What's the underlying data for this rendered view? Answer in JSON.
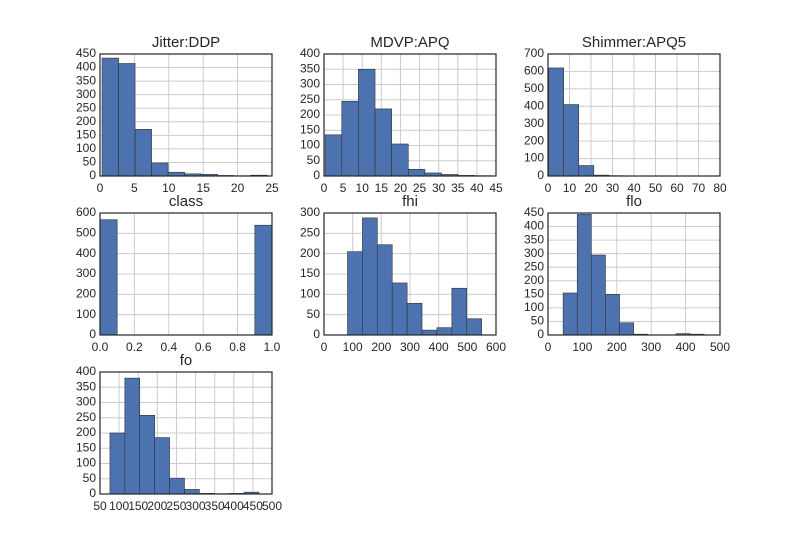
{
  "chart_data": [
    {
      "type": "histogram",
      "title": "Jitter:DDP",
      "color": "#4c72b0",
      "grid": true,
      "bins": [
        0.3,
        2.7,
        5.1,
        7.5,
        9.9,
        12.3,
        14.7,
        17.1,
        19.5,
        21.9,
        24.3
      ],
      "counts": [
        435,
        415,
        172,
        48,
        14,
        8,
        6,
        2,
        1,
        3
      ],
      "xlim": [
        0,
        25
      ],
      "xticks": [
        0,
        5,
        10,
        15,
        20,
        25
      ],
      "ylim": [
        0,
        450
      ],
      "yticks": [
        0,
        50,
        100,
        150,
        200,
        250,
        300,
        350,
        400,
        450
      ]
    },
    {
      "type": "histogram",
      "title": "MDVP:APQ",
      "color": "#4c72b0",
      "grid": true,
      "bins": [
        0.3,
        4.65,
        9.0,
        13.35,
        17.7,
        22.05,
        26.4,
        30.75,
        35.1,
        39.45,
        43.8
      ],
      "counts": [
        135,
        245,
        350,
        220,
        105,
        22,
        10,
        5,
        2,
        1
      ],
      "xlim": [
        0,
        45
      ],
      "xticks": [
        0,
        5,
        10,
        15,
        20,
        25,
        30,
        35,
        40,
        45
      ],
      "ylim": [
        0,
        400
      ],
      "yticks": [
        0,
        50,
        100,
        150,
        200,
        250,
        300,
        350,
        400
      ]
    },
    {
      "type": "histogram",
      "title": "Shimmer:APQ5",
      "color": "#4c72b0",
      "grid": true,
      "bins": [
        0.3,
        7.3,
        14.3,
        21.3,
        28.3,
        35.3,
        42.3,
        49.3,
        56.3,
        63.3,
        70.3
      ],
      "counts": [
        620,
        410,
        60,
        5,
        2,
        1,
        1,
        0,
        0,
        1
      ],
      "xlim": [
        0,
        80
      ],
      "xticks": [
        0,
        10,
        20,
        30,
        40,
        50,
        60,
        70,
        80
      ],
      "ylim": [
        0,
        700
      ],
      "yticks": [
        0,
        100,
        200,
        300,
        400,
        500,
        600,
        700
      ]
    },
    {
      "type": "histogram",
      "title": "class",
      "color": "#4c72b0",
      "grid": true,
      "bins": [
        0,
        0.1,
        0.2,
        0.3,
        0.4,
        0.5,
        0.6,
        0.7,
        0.8,
        0.9,
        1
      ],
      "counts": [
        567,
        0,
        0,
        0,
        0,
        0,
        0,
        0,
        0,
        540
      ],
      "xlim": [
        0,
        1
      ],
      "xticks": [
        {
          "value": 0,
          "label": "0.0"
        },
        0.2,
        0.4,
        0.6,
        0.8,
        {
          "value": 1,
          "label": "1.0"
        }
      ],
      "ylim": [
        0,
        600
      ],
      "yticks": [
        0,
        100,
        200,
        300,
        400,
        500,
        600
      ]
    },
    {
      "type": "histogram",
      "title": "fhi",
      "color": "#4c72b0",
      "grid": true,
      "bins": [
        82,
        134,
        186,
        238,
        290,
        342,
        394,
        446,
        498,
        550
      ],
      "counts": [
        205,
        288,
        222,
        128,
        78,
        12,
        18,
        115,
        40
      ],
      "xlim": [
        0,
        600
      ],
      "xticks": [
        0,
        100,
        200,
        300,
        400,
        500,
        600
      ],
      "ylim": [
        0,
        300
      ],
      "yticks": [
        0,
        50,
        100,
        150,
        200,
        250,
        300
      ]
    },
    {
      "type": "histogram",
      "title": "flo",
      "color": "#4c72b0",
      "grid": true,
      "bins": [
        44,
        85,
        126,
        167,
        208,
        249,
        290,
        331,
        372,
        413,
        454
      ],
      "counts": [
        155,
        445,
        295,
        150,
        45,
        3,
        0,
        0,
        5,
        3
      ],
      "xlim": [
        0,
        500
      ],
      "xticks": [
        0,
        100,
        200,
        300,
        400,
        500
      ],
      "ylim": [
        0,
        450
      ],
      "yticks": [
        0,
        50,
        100,
        150,
        200,
        250,
        300,
        350,
        400,
        450
      ]
    },
    {
      "type": "histogram",
      "title": "fo",
      "color": "#4c72b0",
      "grid": true,
      "bins": [
        76,
        115,
        154,
        193,
        232,
        271,
        310,
        349,
        388,
        427,
        466
      ],
      "counts": [
        200,
        380,
        258,
        185,
        52,
        15,
        2,
        1,
        2,
        6
      ],
      "xlim": [
        50,
        500
      ],
      "xticks": [
        50,
        100,
        150,
        200,
        250,
        300,
        350,
        400,
        450,
        500
      ],
      "ylim": [
        0,
        400
      ],
      "yticks": [
        0,
        50,
        100,
        150,
        200,
        250,
        300,
        350,
        400
      ]
    }
  ]
}
